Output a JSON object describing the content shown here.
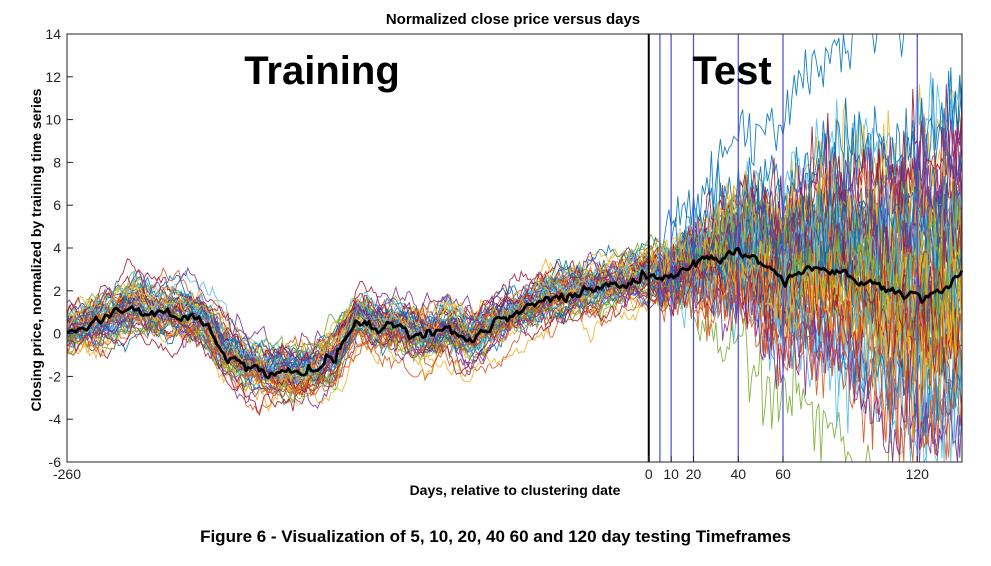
{
  "figure_caption": "Figure 6 - Visualization of 5, 10, 20, 40 60 and 120 day testing Timeframes",
  "colors": {
    "mean_line": "#000000",
    "marker_lines": "#4a4ae0",
    "series_palette": [
      "#0072BD",
      "#D95319",
      "#EDB120",
      "#7E2F8E",
      "#77AC30",
      "#4DBEEE",
      "#A2142F"
    ]
  },
  "chart_data": {
    "type": "line",
    "title": "Normalized close price versus days",
    "xlabel": "Days, relative to clustering date",
    "ylabel": "Closing price, normalized by training time series",
    "xlim": [
      -260,
      140
    ],
    "ylim": [
      -6,
      14
    ],
    "x_ticks": [
      -260,
      0,
      10,
      20,
      40,
      60,
      120
    ],
    "y_ticks": [
      -6,
      -4,
      -2,
      0,
      2,
      4,
      6,
      8,
      10,
      12,
      14
    ],
    "grid": false,
    "legend": "none",
    "annotations": [
      "Training",
      "Test"
    ],
    "split_line_x": 0,
    "test_marker_x": [
      5,
      10,
      20,
      40,
      60,
      120
    ],
    "series_count": 60,
    "mean_series": {
      "x": [
        -260,
        -250,
        -240,
        -230,
        -220,
        -210,
        -200,
        -190,
        -180,
        -170,
        -160,
        -150,
        -140,
        -130,
        -120,
        -110,
        -100,
        -90,
        -80,
        -70,
        -60,
        -50,
        -40,
        -30,
        -20,
        -10,
        0,
        10,
        20,
        30,
        40,
        45,
        50,
        60,
        70,
        80,
        90,
        100,
        110,
        120,
        130,
        140
      ],
      "y": [
        0,
        0.4,
        0.8,
        1.3,
        0.8,
        1.0,
        0.5,
        -0.8,
        -1.5,
        -1.8,
        -1.9,
        -1.8,
        -1.1,
        0.6,
        0.3,
        0.2,
        -0.2,
        0.3,
        -0.3,
        0.4,
        1.0,
        1.4,
        1.8,
        2.0,
        2.2,
        2.4,
        2.6,
        2.7,
        3.2,
        3.5,
        3.8,
        3.7,
        3.4,
        2.5,
        3.0,
        3.2,
        2.7,
        2.2,
        1.8,
        1.6,
        1.8,
        2.7
      ]
    }
  }
}
